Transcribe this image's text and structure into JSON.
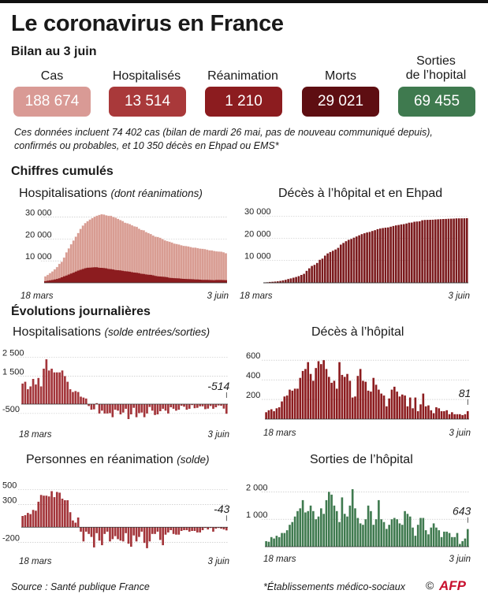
{
  "header": {
    "title": "Le coronavirus en France",
    "subtitle": "Bilan au 3 juin"
  },
  "stats": [
    {
      "label": "Cas",
      "value": "188 674",
      "color": "#d99a95"
    },
    {
      "label": "Hospitalisés",
      "value": "13 514",
      "color": "#a9393a"
    },
    {
      "label": "Réanimation",
      "value": "1 210",
      "color": "#8c1c1f"
    },
    {
      "label": "Morts",
      "value": "29 021",
      "color": "#5e0e12"
    },
    {
      "label_lines": [
        "Sorties",
        "de l’hopital"
      ],
      "value": "69 455",
      "color": "#3f7a4f"
    }
  ],
  "note_lines": [
    "Ces données incluent 74 402 cas (bilan de mardi 26 mai, pas de nouveau communiqué depuis),",
    "confirmés ou probables, et 10 350 décès en Ehpad ou EMS*"
  ],
  "sections": {
    "cumulative": "Chiffres cumulés",
    "daily": "Évolutions journalières"
  },
  "footer": {
    "source": "Source : Santé publique France",
    "footnote": "*Établissements médico-sociaux",
    "copyright": "©",
    "logo": "AFP"
  },
  "chart_data": [
    {
      "id": "hosp_cum",
      "type": "area",
      "title": "Hospitalisations",
      "title_note": "(dont réanimations)",
      "x_start": "18 mars",
      "x_end": "3 juin",
      "yticks": [
        10000,
        20000,
        30000
      ],
      "ytick_labels": [
        "10 000",
        "20 000",
        "30 000"
      ],
      "ylim": [
        0,
        32000
      ],
      "series": [
        {
          "name": "Hospitalisations",
          "color": "#d89c92",
          "values": [
            2972,
            3626,
            4461,
            5226,
            6172,
            7240,
            8675,
            9621,
            11539,
            13904,
            15732,
            17620,
            19354,
            21075,
            22757,
            24639,
            26131,
            27302,
            28143,
            28891,
            29569,
            30217,
            30639,
            30991,
            31305,
            31190,
            30866,
            30584,
            30610,
            30106,
            29741,
            29219,
            28710,
            28217,
            27484,
            27186,
            26834,
            26283,
            25827,
            25548,
            24748,
            24207,
            23983,
            23208,
            22724,
            22284,
            21595,
            21071,
            20941,
            20572,
            19985,
            19432,
            19052,
            18784,
            18415,
            17929,
            17761,
            17520,
            17178,
            16888,
            16798,
            16657,
            16366,
            16119,
            16068,
            15846,
            15648,
            15531,
            15412,
            15143,
            14901,
            14800,
            14557,
            14389,
            14320,
            14232,
            13989,
            13514
          ]
        },
        {
          "name": "Réanimations",
          "color": "#8c1c1f",
          "values": [
            771,
            931,
            1122,
            1297,
            1525,
            1746,
            2082,
            2516,
            2935,
            3351,
            3758,
            4236,
            4632,
            5107,
            5565,
            5940,
            6305,
            6662,
            6863,
            6948,
            7004,
            7132,
            7072,
            6883,
            6821,
            6730,
            6599,
            6331,
            6248,
            6072,
            5833,
            5744,
            5683,
            5498,
            5334,
            5218,
            5053,
            4870,
            4682,
            4608,
            4387,
            4128,
            4019,
            3827,
            3696,
            3639,
            3430,
            3147,
            2961,
            2868,
            2776,
            2712,
            2542,
            2299,
            2203,
            2132,
            2087,
            1998,
            1894,
            1794,
            1745,
            1701,
            1665,
            1609,
            1555,
            1501,
            1429,
            1361,
            1325,
            1316,
            1288,
            1274,
            1209,
            1304,
            1293,
            1278,
            1242,
            1210
          ]
        }
      ]
    },
    {
      "id": "deaths_cum",
      "type": "bar",
      "title": "Décès à l’hôpital et en Ehpad",
      "x_start": "18 mars",
      "x_end": "3 juin",
      "yticks": [
        10000,
        20000,
        30000
      ],
      "ytick_labels": [
        "10 000",
        "20 000",
        "30 000"
      ],
      "ylim": [
        0,
        31500
      ],
      "series": [
        {
          "name": "Décès",
          "color": "#7b1a1d",
          "values": [
            175,
            244,
            372,
            450,
            562,
            674,
            860,
            1100,
            1331,
            1696,
            1995,
            2314,
            2606,
            3024,
            3523,
            4032,
            5387,
            6507,
            7560,
            8078,
            8911,
            10328,
            10869,
            12210,
            13197,
            13832,
            14393,
            14967,
            15729,
            17167,
            17920,
            18681,
            19323,
            19718,
            20265,
            20796,
            21340,
            21856,
            22245,
            22614,
            22856,
            23293,
            23660,
            24087,
            24376,
            24594,
            24760,
            24895,
            25201,
            25531,
            25809,
            25987,
            26230,
            26380,
            26643,
            26991,
            27074,
            27425,
            27529,
            27625,
            28108,
            28239,
            28289,
            28332,
            28367,
            28460,
            28530,
            28596,
            28662,
            28714,
            28771,
            28805,
            28833,
            28940,
            28942,
            28960,
            29000,
            29021
          ]
        }
      ]
    },
    {
      "id": "hosp_daily",
      "type": "bar",
      "title": "Hospitalisations",
      "title_note": "(solde entrées/sorties)",
      "x_start": "18 mars",
      "x_end": "3 juin",
      "yticks": [
        -500,
        1500,
        2500
      ],
      "ytick_labels": [
        "-500",
        "1 500",
        "2 500"
      ],
      "ylim": [
        -800,
        2700
      ],
      "last_label": "-514",
      "series": [
        {
          "name": "Solde",
          "color": "#a3353a",
          "values": [
            1100,
            1200,
            800,
            950,
            1350,
            1050,
            1400,
            950,
            1900,
            2400,
            1800,
            1900,
            1700,
            1700,
            1700,
            1800,
            1500,
            1200,
            800,
            650,
            700,
            650,
            400,
            350,
            300,
            -100,
            -300,
            -280,
            50,
            -500,
            -350,
            -500,
            -500,
            -480,
            -700,
            -300,
            -350,
            -550,
            -450,
            -250,
            -800,
            -550,
            -200,
            -700,
            -480,
            -450,
            -700,
            -500,
            -150,
            -350,
            -580,
            -550,
            -380,
            -250,
            -350,
            -500,
            -170,
            -250,
            -350,
            -300,
            -90,
            -140,
            -300,
            -250,
            -50,
            -220,
            -200,
            -120,
            -120,
            -270,
            -240,
            -100,
            -250,
            -170,
            -70,
            -90,
            -240,
            -514
          ]
        }
      ]
    },
    {
      "id": "deaths_daily",
      "type": "bar",
      "title": "Décès à l’hôpital",
      "x_start": "18 mars",
      "x_end": "3 juin",
      "yticks": [
        200,
        400,
        600
      ],
      "ytick_labels": [
        "200",
        "400",
        "600"
      ],
      "ylim": [
        0,
        650
      ],
      "last_label": "81",
      "series": [
        {
          "name": "Décès",
          "color": "#8c1c1f",
          "values": [
            70,
            90,
            100,
            80,
            110,
            120,
            180,
            230,
            240,
            300,
            290,
            310,
            310,
            420,
            490,
            510,
            580,
            460,
            390,
            520,
            590,
            560,
            600,
            510,
            430,
            370,
            390,
            310,
            580,
            450,
            430,
            460,
            390,
            220,
            230,
            440,
            510,
            390,
            380,
            290,
            280,
            420,
            350,
            300,
            260,
            240,
            130,
            210,
            300,
            330,
            280,
            230,
            250,
            240,
            130,
            220,
            110,
            220,
            80,
            150,
            260,
            130,
            140,
            90,
            60,
            120,
            110,
            80,
            80,
            90,
            50,
            70,
            50,
            50,
            50,
            40,
            50,
            81
          ]
        }
      ]
    },
    {
      "id": "icu_daily",
      "type": "bar",
      "title": "Personnes en réanimation",
      "title_note": "(solde)",
      "x_start": "18 mars",
      "x_end": "3 juin",
      "yticks": [
        -200,
        300,
        500
      ],
      "ytick_labels": [
        "-200",
        "300",
        "500"
      ],
      "ylim": [
        -260,
        580
      ],
      "last_label": "-43",
      "series": [
        {
          "name": "Solde",
          "color": "#a3353a",
          "values": [
            150,
            160,
            190,
            175,
            230,
            220,
            340,
            430,
            420,
            420,
            410,
            480,
            400,
            470,
            460,
            380,
            360,
            360,
            200,
            90,
            60,
            130,
            -60,
            -190,
            -60,
            -90,
            -130,
            -270,
            -80,
            -180,
            -240,
            -90,
            -60,
            -190,
            -160,
            -120,
            -160,
            -180,
            -190,
            -80,
            -220,
            -260,
            -110,
            -190,
            -130,
            -60,
            -210,
            -280,
            -190,
            -90,
            -90,
            -60,
            -170,
            -240,
            -100,
            -70,
            -40,
            -90,
            -100,
            -100,
            -50,
            -40,
            -40,
            -60,
            -50,
            -50,
            -70,
            -70,
            -40,
            -10,
            -30,
            -10,
            -60,
            -20,
            -10,
            -20,
            -30,
            -43
          ]
        }
      ]
    },
    {
      "id": "discharge_daily",
      "type": "bar",
      "title": "Sorties de l’hôpital",
      "x_start": "18 mars",
      "x_end": "3 juin",
      "yticks": [
        1000,
        2000
      ],
      "ytick_labels": [
        "1 000",
        "2 000"
      ],
      "ylim": [
        0,
        2300
      ],
      "last_label": "643",
      "series": [
        {
          "name": "Sorties",
          "color": "#3f7a4f",
          "values": [
            200,
            180,
            350,
            300,
            400,
            350,
            500,
            500,
            600,
            800,
            900,
            1100,
            1300,
            1400,
            1700,
            1250,
            1300,
            1500,
            1300,
            1000,
            1100,
            1400,
            1200,
            1700,
            2000,
            1900,
            1500,
            1300,
            900,
            1800,
            1200,
            1100,
            1500,
            2100,
            1400,
            1050,
            850,
            800,
            1000,
            1500,
            1300,
            800,
            1000,
            1700,
            1000,
            900,
            650,
            800,
            1000,
            1050,
            1000,
            850,
            800,
            1300,
            1200,
            1100,
            700,
            400,
            800,
            1050,
            1050,
            600,
            450,
            700,
            850,
            700,
            600,
            350,
            550,
            550,
            500,
            350,
            350,
            500,
            100,
            200,
            300,
            643
          ]
        }
      ]
    }
  ]
}
